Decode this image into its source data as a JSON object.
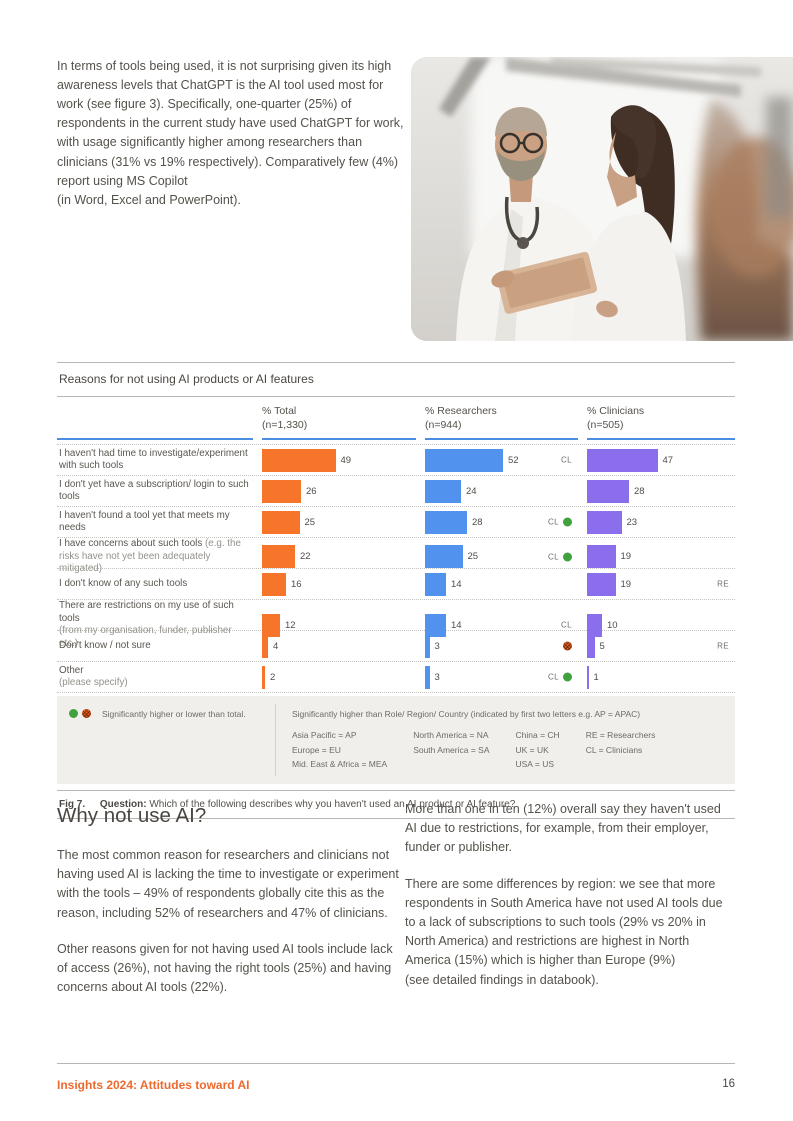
{
  "intro_text": "In terms of tools being used, it is not surprising given its high awareness levels that ChatGPT is the AI tool used most for work (see figure 3). Specifically, one-quarter (25%) of respondents in the current study have used ChatGPT for work, with usage significantly higher among researchers than clinicians (31% vs 19% respectively). Comparatively few (4%) report using MS Copilot\n(in Word, Excel and PowerPoint).",
  "photo": {
    "alt": "Two clinicians in white coats reviewing a tablet together"
  },
  "figure": {
    "caption_fig": "Fig 7.",
    "caption_label": "Question:",
    "caption_text": "Which of the following describes why you haven't used an AI product or AI feature?"
  },
  "chart_data": {
    "type": "bar",
    "title": "Reasons for not using AI products or AI features",
    "orientation": "horizontal",
    "value_unit": "%",
    "xlim": [
      0,
      100
    ],
    "columns": [
      {
        "label": "% Total",
        "n": "(n=1,330)",
        "color": "#F7752B"
      },
      {
        "label": "% Researchers",
        "n": "(n=944)",
        "color": "#5292EF"
      },
      {
        "label": "% Clinicians",
        "n": "(n=505)",
        "color": "#8A6EEB"
      }
    ],
    "rows": [
      {
        "label": "I haven't had time to investigate/experiment with such tools",
        "note": "",
        "note_style": "inline",
        "values": [
          49,
          52,
          47
        ],
        "markers": [
          null,
          {
            "letters": "CL"
          },
          null
        ]
      },
      {
        "label": "I don't yet have a subscription/ login to such tools",
        "note": "",
        "note_style": "inline",
        "values": [
          26,
          24,
          28
        ],
        "markers": [
          null,
          null,
          null
        ]
      },
      {
        "label": "I haven't found a tool yet that meets my needs",
        "note": "",
        "note_style": "inline",
        "values": [
          25,
          28,
          23
        ],
        "markers": [
          null,
          {
            "letters": "CL",
            "dot": "higher"
          },
          null
        ]
      },
      {
        "label": "I have concerns about such tools",
        "note": "(e.g. the risks have not yet been adequately mitigated)",
        "note_style": "inline",
        "values": [
          22,
          25,
          19
        ],
        "markers": [
          null,
          {
            "letters": "CL",
            "dot": "higher"
          },
          null
        ]
      },
      {
        "label": "I don't know of any such tools",
        "note": "",
        "note_style": "inline",
        "values": [
          16,
          14,
          19
        ],
        "markers": [
          null,
          null,
          {
            "letters": "RE"
          }
        ]
      },
      {
        "label": "There are restrictions on my use of such tools",
        "note": "(from my organisation, funder, publisher etc.)",
        "note_style": "block",
        "values": [
          12,
          14,
          10
        ],
        "markers": [
          null,
          {
            "letters": "CL"
          },
          null
        ]
      },
      {
        "label": "Don't know / not sure",
        "note": "",
        "note_style": "inline",
        "values": [
          4,
          3,
          5
        ],
        "markers": [
          null,
          {
            "dot": "lower"
          },
          {
            "letters": "RE"
          }
        ]
      },
      {
        "label": "Other",
        "note": "(please specify)",
        "note_style": "block",
        "values": [
          2,
          3,
          1
        ],
        "markers": [
          null,
          {
            "letters": "CL",
            "dot": "higher"
          },
          null
        ]
      }
    ]
  },
  "legend": {
    "left_text": "Significantly higher or lower than total.",
    "right_title": "Significantly higher than Role/ Region/ Country (indicated by first two letters e.g. AP = APAC)",
    "columns": [
      [
        "Asia Pacific = AP",
        "Europe = EU",
        "Mid. East & Africa = MEA"
      ],
      [
        "North America  = NA",
        "South America = SA"
      ],
      [
        "China = CH",
        "UK = UK",
        "USA = US"
      ],
      [
        "RE = Researchers",
        "CL = Clinicians"
      ]
    ]
  },
  "why": {
    "heading": "Why not use AI?",
    "left_p1": "The most common reason for researchers and clinicians not having used AI is lacking the time to investigate or experiment with the tools – 49% of respondents globally cite this as the reason, including 52% of researchers and 47% of clinicians.",
    "left_p2": "Other reasons given for not having used AI tools include lack of access (26%), not having the right tools (25%) and having concerns about AI tools (22%).",
    "right_p1": "More than one in ten (12%) overall say they haven't used AI due to restrictions, for example, from their employer, funder or publisher.",
    "right_p2": "There are some differences by region: we see that more respondents in South America have not used AI tools due to a lack of subscriptions to such tools (29% vs 20% in North America) and restrictions are highest in North America (15%) which is higher than Europe (9%)\n(see detailed findings in databook)."
  },
  "footer": {
    "title": "Insights 2024: Attitudes toward AI",
    "page": "16"
  },
  "colors": {
    "total_bar": "#F7752B",
    "researchers_bar": "#5292EF",
    "clinicians_bar": "#8A6EEB",
    "header_rule": "#4A8EE2",
    "higher_dot": "#3FA23F",
    "lower_dot": "#E05A1E",
    "footer_accent": "#ED6A2F"
  }
}
